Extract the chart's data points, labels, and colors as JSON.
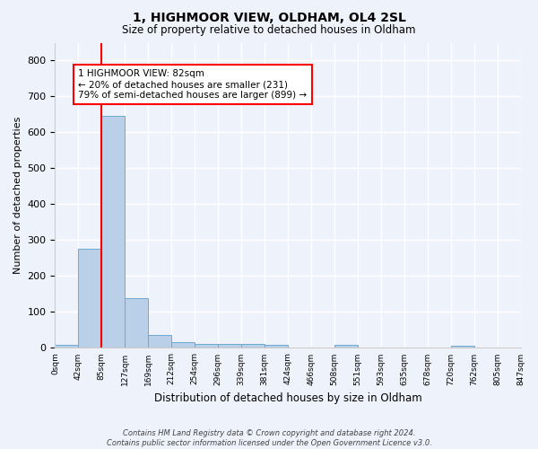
{
  "title1": "1, HIGHMOOR VIEW, OLDHAM, OL4 2SL",
  "title2": "Size of property relative to detached houses in Oldham",
  "xlabel": "Distribution of detached houses by size in Oldham",
  "ylabel": "Number of detached properties",
  "bar_values": [
    8,
    275,
    645,
    138,
    37,
    17,
    12,
    10,
    10,
    8,
    0,
    0,
    8,
    0,
    0,
    0,
    0,
    7,
    0,
    0
  ],
  "bar_labels": [
    "0sqm",
    "42sqm",
    "85sqm",
    "127sqm",
    "169sqm",
    "212sqm",
    "254sqm",
    "296sqm",
    "339sqm",
    "381sqm",
    "424sqm",
    "466sqm",
    "508sqm",
    "551sqm",
    "593sqm",
    "635sqm",
    "678sqm",
    "720sqm",
    "762sqm",
    "805sqm",
    "847sqm"
  ],
  "bar_color": "#bad0e8",
  "bar_edge_color": "#6aaad4",
  "red_line_x": 1.5,
  "ylim": [
    0,
    850
  ],
  "yticks": [
    0,
    100,
    200,
    300,
    400,
    500,
    600,
    700,
    800
  ],
  "annotation_text": "1 HIGHMOOR VIEW: 82sqm\n← 20% of detached houses are smaller (231)\n79% of semi-detached houses are larger (899) →",
  "annotation_box_color": "white",
  "annotation_box_edge": "red",
  "footer": "Contains HM Land Registry data © Crown copyright and database right 2024.\nContains public sector information licensed under the Open Government Licence v3.0.",
  "background_color": "#eef2fa",
  "grid_color": "white"
}
